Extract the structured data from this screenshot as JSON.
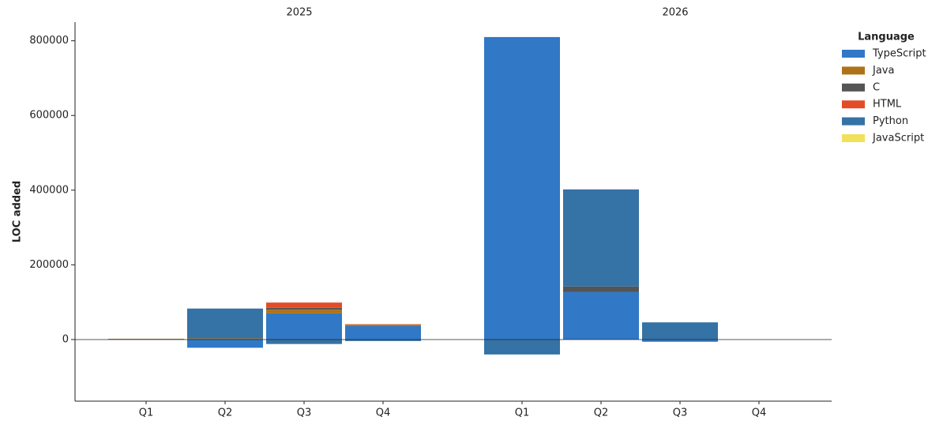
{
  "chart_data": {
    "type": "stacked-bar",
    "y_label": "LOC added",
    "facets": [
      "2025",
      "2026"
    ],
    "categories": [
      "Q1",
      "Q2",
      "Q3",
      "Q4",
      "Q1",
      "Q2",
      "Q3",
      "Q4"
    ],
    "legend_title": "Language",
    "legend_position": "upper right outside",
    "series": [
      {
        "name": "TypeScript",
        "color": "#3178c6",
        "values": [
          0,
          -22000,
          70000,
          36000,
          810000,
          127000,
          -6000,
          0
        ]
      },
      {
        "name": "Java",
        "color": "#b07219",
        "values": [
          2000,
          3000,
          10000,
          4000,
          0,
          0,
          0,
          0
        ]
      },
      {
        "name": "C",
        "color": "#555555",
        "values": [
          0,
          0,
          5000,
          0,
          0,
          15000,
          0,
          0
        ]
      },
      {
        "name": "HTML",
        "color": "#e34c26",
        "values": [
          0,
          0,
          14000,
          1000,
          0,
          0,
          0,
          0
        ]
      },
      {
        "name": "Python",
        "color": "#3572a5",
        "values": [
          0,
          80000,
          -12000,
          -4000,
          -40000,
          260000,
          46000,
          0
        ]
      },
      {
        "name": "JavaScript",
        "color": "#f1e05a",
        "values": [
          0,
          0,
          0,
          0,
          0,
          0,
          0,
          0
        ]
      }
    ],
    "ylim": [
      -165000,
      850000
    ],
    "yticks": [
      0,
      200000,
      400000,
      600000,
      800000
    ]
  }
}
